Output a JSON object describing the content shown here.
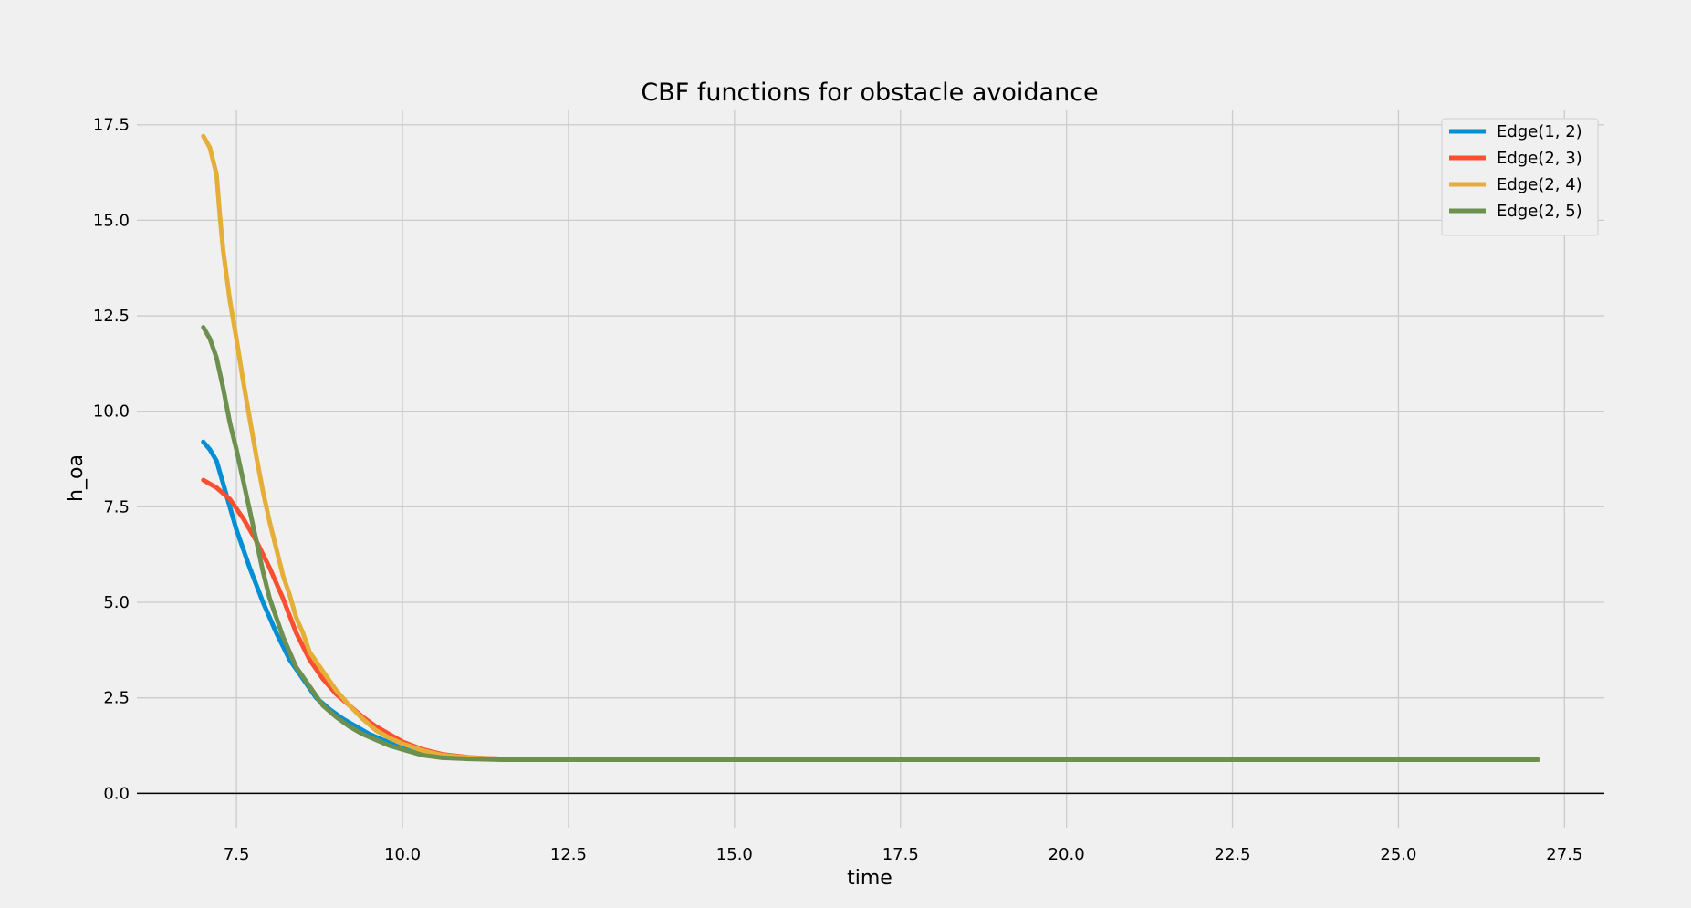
{
  "colors": {
    "background": "#f0f0f0",
    "grid": "#cbcbcb",
    "zero_line": "#000000",
    "series": [
      "#008fd5",
      "#fc4f30",
      "#e5ae38",
      "#6d904f"
    ]
  },
  "chart_data": {
    "type": "line",
    "title": "CBF functions for obstacle avoidance",
    "xlabel": "time",
    "ylabel": "h_oa",
    "xlim": [
      6.0,
      28.1
    ],
    "ylim": [
      -0.9,
      17.9
    ],
    "x_ticks": [
      7.5,
      10.0,
      12.5,
      15.0,
      17.5,
      20.0,
      22.5,
      25.0,
      27.5
    ],
    "x_tick_labels": [
      "7.5",
      "10.0",
      "12.5",
      "15.0",
      "17.5",
      "20.0",
      "22.5",
      "25.0",
      "27.5"
    ],
    "y_ticks": [
      0.0,
      2.5,
      5.0,
      7.5,
      10.0,
      12.5,
      15.0,
      17.5
    ],
    "y_tick_labels": [
      "0.0",
      "2.5",
      "5.0",
      "7.5",
      "10.0",
      "12.5",
      "15.0",
      "17.5"
    ],
    "grid": true,
    "legend_position": "top-right",
    "zero_line": true,
    "series": [
      {
        "name": "Edge(1, 2)",
        "x": [
          7.0,
          7.1,
          7.2,
          7.3,
          7.5,
          7.7,
          7.9,
          8.1,
          8.3,
          8.5,
          8.7,
          8.9,
          9.1,
          9.3,
          9.5,
          9.7,
          10.0,
          10.3,
          10.6,
          11.0,
          11.5,
          12.0,
          13.0,
          15.0,
          20.0,
          25.0,
          27.1
        ],
        "y": [
          9.2,
          9.0,
          8.7,
          8.1,
          6.9,
          5.9,
          5.0,
          4.2,
          3.5,
          3.0,
          2.5,
          2.2,
          1.95,
          1.75,
          1.55,
          1.4,
          1.2,
          1.05,
          0.97,
          0.92,
          0.89,
          0.88,
          0.88,
          0.88,
          0.88,
          0.88,
          0.88
        ]
      },
      {
        "name": "Edge(2, 3)",
        "x": [
          7.0,
          7.2,
          7.4,
          7.6,
          7.8,
          8.0,
          8.2,
          8.4,
          8.6,
          8.8,
          9.0,
          9.2,
          9.4,
          9.6,
          9.8,
          10.0,
          10.3,
          10.6,
          11.0,
          11.5,
          12.0,
          13.0,
          15.0,
          20.0,
          25.0,
          27.1
        ],
        "y": [
          8.2,
          8.0,
          7.7,
          7.2,
          6.6,
          5.9,
          5.1,
          4.2,
          3.5,
          3.0,
          2.6,
          2.3,
          2.0,
          1.75,
          1.55,
          1.35,
          1.15,
          1.02,
          0.94,
          0.9,
          0.88,
          0.88,
          0.88,
          0.88,
          0.88,
          0.88
        ]
      },
      {
        "name": "Edge(2, 4)",
        "x": [
          7.0,
          7.1,
          7.2,
          7.25,
          7.3,
          7.4,
          7.5,
          7.6,
          7.7,
          7.8,
          7.9,
          8.0,
          8.1,
          8.2,
          8.3,
          8.4,
          8.5,
          8.6,
          8.8,
          9.0,
          9.2,
          9.4,
          9.6,
          9.8,
          10.0,
          10.3,
          10.6,
          11.0,
          11.5,
          12.0,
          13.0,
          15.0,
          20.0,
          25.0,
          27.1
        ],
        "y": [
          17.2,
          16.9,
          16.2,
          15.1,
          14.2,
          12.9,
          11.9,
          10.8,
          9.8,
          8.8,
          7.9,
          7.1,
          6.4,
          5.7,
          5.2,
          4.6,
          4.2,
          3.7,
          3.2,
          2.7,
          2.3,
          1.95,
          1.65,
          1.45,
          1.3,
          1.12,
          1.0,
          0.93,
          0.9,
          0.88,
          0.88,
          0.88,
          0.88,
          0.88,
          0.88
        ]
      },
      {
        "name": "Edge(2, 5)",
        "x": [
          7.0,
          7.1,
          7.2,
          7.3,
          7.4,
          7.5,
          7.6,
          7.7,
          7.8,
          7.9,
          8.0,
          8.1,
          8.2,
          8.3,
          8.4,
          8.6,
          8.8,
          9.0,
          9.2,
          9.4,
          9.6,
          9.8,
          10.0,
          10.3,
          10.6,
          11.0,
          11.5,
          12.0,
          13.0,
          15.0,
          20.0,
          25.0,
          27.1
        ],
        "y": [
          12.2,
          11.9,
          11.4,
          10.6,
          9.7,
          9.0,
          8.2,
          7.4,
          6.6,
          5.8,
          5.1,
          4.6,
          4.1,
          3.7,
          3.3,
          2.8,
          2.3,
          2.0,
          1.75,
          1.55,
          1.4,
          1.25,
          1.15,
          1.0,
          0.93,
          0.9,
          0.88,
          0.88,
          0.88,
          0.88,
          0.88,
          0.88,
          0.88
        ]
      }
    ]
  }
}
